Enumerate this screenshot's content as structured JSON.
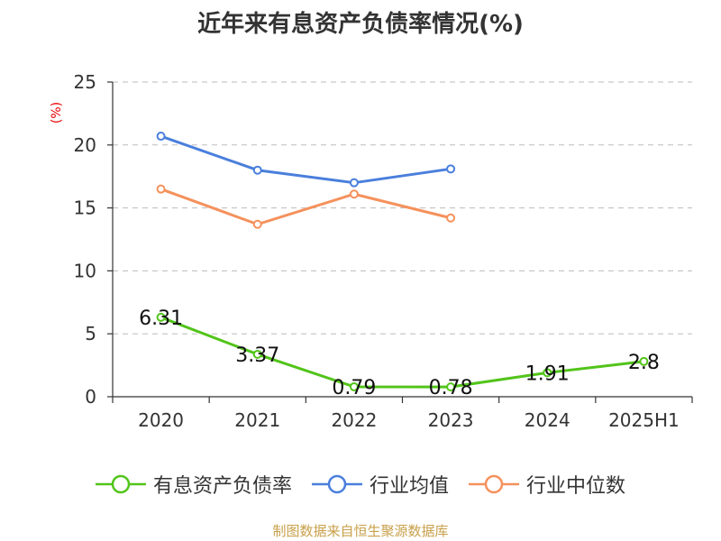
{
  "chart_data": {
    "type": "line",
    "title": "近年来有息资产负债率情况(%)",
    "unit_label": "(%)",
    "categories": [
      "2020",
      "2021",
      "2022",
      "2023",
      "2024",
      "2025H1"
    ],
    "ylim": [
      0,
      25
    ],
    "yticks": [
      0,
      5,
      10,
      15,
      20,
      25
    ],
    "grid": true,
    "legend_position": "bottom",
    "series": [
      {
        "name": "有息资产负债率",
        "color": "#52c41a",
        "values": [
          6.31,
          3.37,
          0.79,
          0.78,
          1.91,
          2.8
        ],
        "labels": [
          "6.31",
          "3.37",
          "0.79",
          "0.78",
          "1.91",
          "2.8"
        ]
      },
      {
        "name": "行业均值",
        "color": "#4a7fdc",
        "values": [
          20.7,
          18.0,
          17.0,
          18.1,
          null,
          null
        ]
      },
      {
        "name": "行业中位数",
        "color": "#f5915c",
        "values": [
          16.5,
          13.7,
          16.1,
          14.2,
          null,
          null
        ]
      }
    ]
  },
  "source_note": "制图数据来自恒生聚源数据库"
}
